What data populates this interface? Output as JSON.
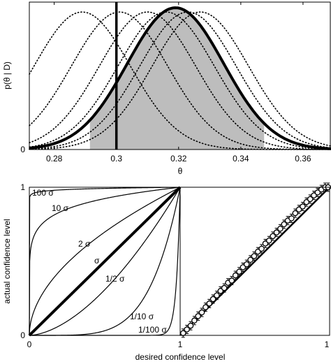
{
  "chart_data": [
    {
      "type": "line",
      "title": "",
      "xlabel": "θ",
      "ylabel": "p(θ | D)",
      "xlim": [
        0.272,
        0.369
      ],
      "ylim": [
        0,
        1.04
      ],
      "xticks": [
        "0.28",
        "0.3",
        "0.32",
        "0.34",
        "0.36"
      ],
      "xtick_values": [
        0.28,
        0.3,
        0.32,
        0.34,
        0.36
      ],
      "yticks": [
        "0"
      ],
      "ytick_values": [
        0
      ],
      "grid": false,
      "posterior": {
        "mean": 0.319,
        "sd": 0.0155,
        "style": "solid-thick"
      },
      "shaded_interval": [
        0.2915,
        0.3475
      ],
      "vertical_line_x": 0.3,
      "dotted_curves_means": [
        0.289,
        0.301,
        0.31,
        0.316,
        0.323,
        0.327
      ],
      "dotted_curve_sd": 0.0155,
      "dotted_curve_peak": 0.97
    },
    {
      "type": "line",
      "title": "",
      "xlabel": "desired confidence level",
      "ylabel": "actual confidence level",
      "xlim": [
        0,
        1
      ],
      "ylim": [
        0,
        1
      ],
      "xticks": [
        "0",
        "1"
      ],
      "yticks": [
        "0",
        "1"
      ],
      "grid": false,
      "series": [
        {
          "name": "100 σ",
          "k": 0.0115
        },
        {
          "name": "10 σ",
          "k": 0.115
        },
        {
          "name": "2 σ",
          "k": 0.52
        },
        {
          "name": "σ",
          "k": 1.0
        },
        {
          "name": "1/2 σ",
          "k": 1.7
        },
        {
          "name": "1/10 σ",
          "k": 5.0
        },
        {
          "name": "1/100 σ",
          "k": 40.0
        }
      ]
    },
    {
      "type": "scatter",
      "title": "",
      "xlim": [
        0,
        1
      ],
      "ylim": [
        0,
        1
      ],
      "xticks": [
        "1"
      ],
      "yticks": [],
      "grid": false,
      "diagonal": true,
      "points_x": [
        0.02,
        0.045,
        0.07,
        0.095,
        0.12,
        0.145,
        0.17,
        0.195,
        0.22,
        0.245,
        0.27,
        0.295,
        0.32,
        0.345,
        0.37,
        0.395,
        0.42,
        0.445,
        0.47,
        0.495,
        0.52,
        0.545,
        0.57,
        0.595,
        0.62,
        0.645,
        0.67,
        0.695,
        0.72,
        0.745,
        0.77,
        0.795,
        0.82,
        0.845,
        0.87,
        0.895,
        0.92,
        0.945,
        0.97,
        0.99
      ],
      "points_y": [
        0.015,
        0.04,
        0.065,
        0.1,
        0.13,
        0.155,
        0.19,
        0.215,
        0.245,
        0.27,
        0.3,
        0.32,
        0.355,
        0.37,
        0.405,
        0.43,
        0.46,
        0.48,
        0.51,
        0.535,
        0.565,
        0.585,
        0.62,
        0.64,
        0.67,
        0.695,
        0.72,
        0.75,
        0.775,
        0.79,
        0.825,
        0.85,
        0.87,
        0.9,
        0.92,
        0.945,
        0.965,
        0.985,
        1.0,
        1.0
      ]
    }
  ]
}
